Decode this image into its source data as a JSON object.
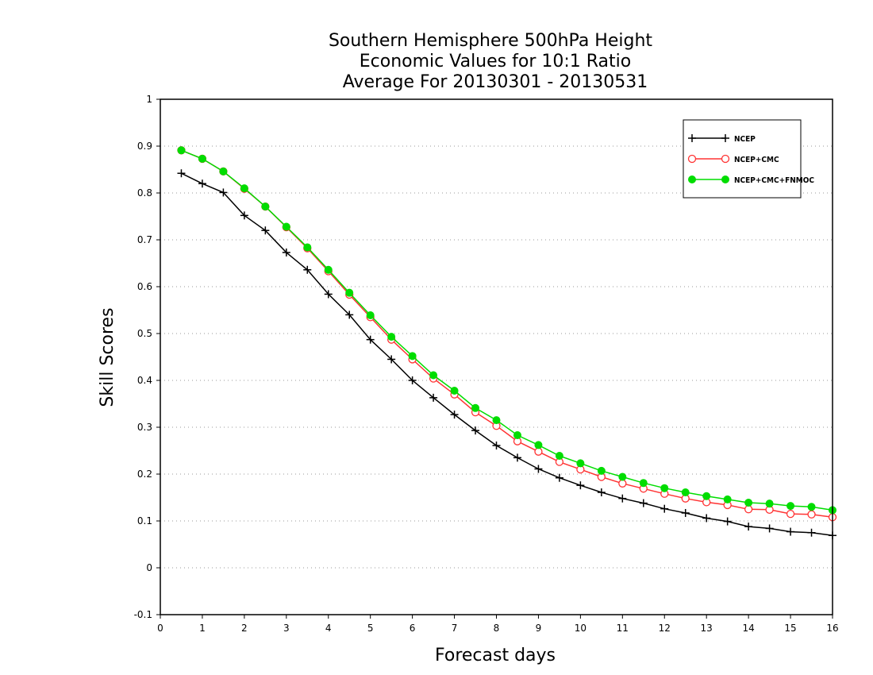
{
  "chart_data": {
    "type": "line",
    "title": [
      "Southern Hemisphere 500hPa Height",
      "Economic Values for 10:1 Ratio",
      "Average For 20130301 - 20130531"
    ],
    "xlabel": "Forecast days",
    "ylabel": "Skill Scores",
    "xlim": [
      0,
      16
    ],
    "ylim": [
      -0.1,
      1
    ],
    "x_ticks": [
      "0",
      "1",
      "2",
      "3",
      "4",
      "5",
      "6",
      "7",
      "8",
      "9",
      "10",
      "11",
      "12",
      "13",
      "14",
      "15",
      "16"
    ],
    "y_ticks": [
      "-0.1",
      "0",
      "0.1",
      "0.2",
      "0.3",
      "0.4",
      "0.5",
      "0.6",
      "0.7",
      "0.8",
      "0.9",
      "1"
    ],
    "grid": true,
    "legend_position": "top-right",
    "x": [
      0.5,
      1,
      1.5,
      2,
      2.5,
      3,
      3.5,
      4,
      4.5,
      5,
      5.5,
      6,
      6.5,
      7,
      7.5,
      8,
      8.5,
      9,
      9.5,
      10,
      10.5,
      11,
      11.5,
      12,
      12.5,
      13,
      13.5,
      14,
      14.5,
      15,
      15.5,
      16
    ],
    "series": [
      {
        "name": "NCEP",
        "color": "#000000",
        "marker": "plus",
        "values": [
          0.842,
          0.82,
          0.801,
          0.752,
          0.72,
          0.673,
          0.636,
          0.584,
          0.54,
          0.487,
          0.445,
          0.4,
          0.363,
          0.327,
          0.293,
          0.261,
          0.235,
          0.211,
          0.192,
          0.176,
          0.161,
          0.148,
          0.138,
          0.126,
          0.117,
          0.106,
          0.099,
          0.088,
          0.084,
          0.077,
          0.075,
          0.069
        ]
      },
      {
        "name": "NCEP+CMC",
        "color": "#ff3333",
        "marker": "open-circle",
        "values": [
          0.891,
          0.873,
          0.846,
          0.809,
          0.771,
          0.727,
          0.682,
          0.633,
          0.583,
          0.535,
          0.487,
          0.445,
          0.404,
          0.37,
          0.332,
          0.303,
          0.27,
          0.248,
          0.226,
          0.21,
          0.194,
          0.18,
          0.169,
          0.158,
          0.148,
          0.14,
          0.134,
          0.125,
          0.124,
          0.115,
          0.114,
          0.108
        ]
      },
      {
        "name": "NCEP+CMC+FNMOC",
        "color": "#00dd00",
        "marker": "filled-circle",
        "values": [
          0.891,
          0.873,
          0.846,
          0.81,
          0.771,
          0.728,
          0.684,
          0.636,
          0.587,
          0.539,
          0.493,
          0.452,
          0.411,
          0.378,
          0.341,
          0.315,
          0.283,
          0.262,
          0.239,
          0.223,
          0.207,
          0.194,
          0.181,
          0.17,
          0.161,
          0.153,
          0.146,
          0.139,
          0.137,
          0.132,
          0.13,
          0.123
        ]
      }
    ]
  }
}
